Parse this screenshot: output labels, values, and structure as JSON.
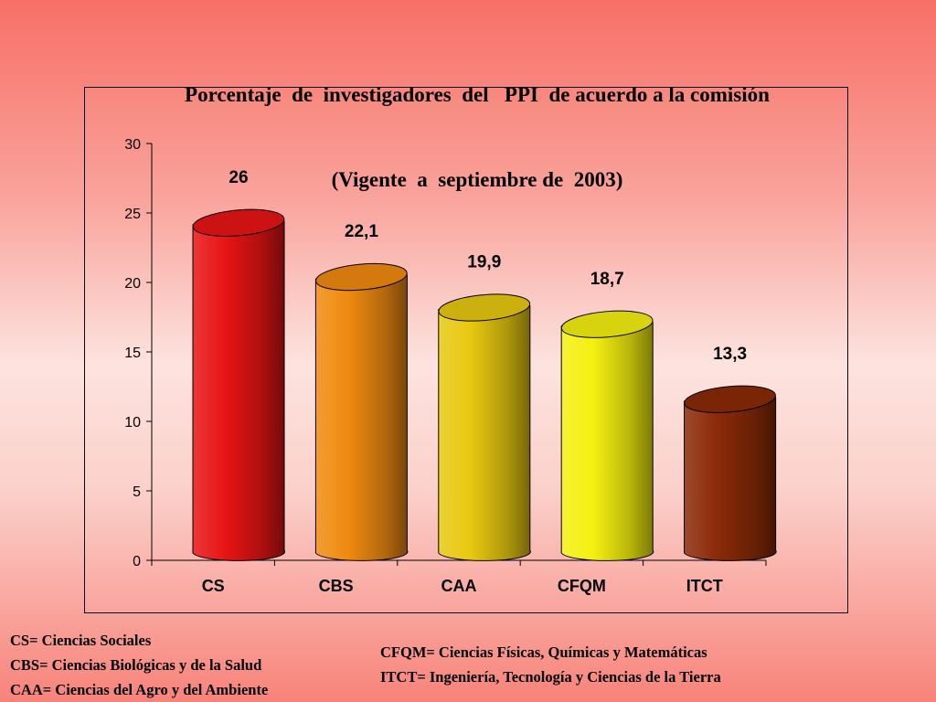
{
  "title": {
    "line1": "Porcentaje  de  investigadores  del   PPI  de acuerdo a la comisión",
    "line2": "(Vigente  a  septiembre de  2003)"
  },
  "chart_data": {
    "type": "bar",
    "categories": [
      "CS",
      "CBS",
      "CAA",
      "CFQM",
      "ITCT"
    ],
    "values": [
      26,
      22.1,
      19.9,
      18.7,
      13.3
    ],
    "value_labels": [
      "26",
      "22,1",
      "19,9",
      "18,7",
      "13,3"
    ],
    "bar_colors": [
      "#e81414",
      "#f08a10",
      "#e8c810",
      "#f4f010",
      "#8c2a08"
    ],
    "ylim": [
      0,
      30
    ],
    "yticks": [
      0,
      5,
      10,
      15,
      20,
      25,
      30
    ],
    "grid": false,
    "legend": "none",
    "style": "3d-cylinder"
  },
  "legend_notes": {
    "left": [
      "CS= Ciencias Sociales",
      "CBS= Ciencias Biológicas y de la Salud",
      "CAA= Ciencias del Agro y del Ambiente"
    ],
    "right": [
      "CFQM= Ciencias Físicas, Químicas y Matemáticas",
      "ITCT= Ingeniería, Tecnología y Ciencias de la Tierra"
    ]
  }
}
